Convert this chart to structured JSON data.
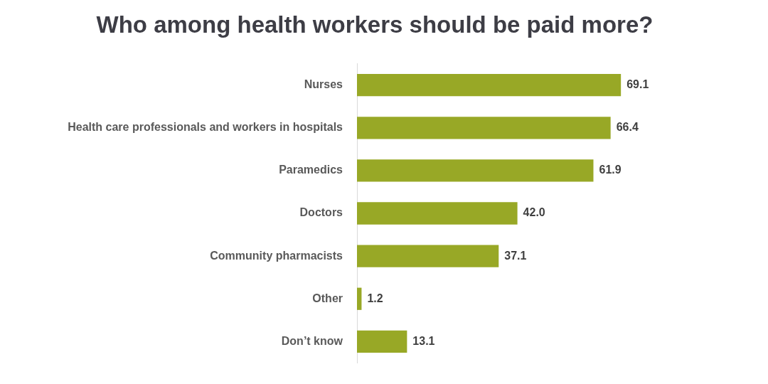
{
  "chart_data": {
    "type": "bar",
    "orientation": "horizontal",
    "title": "Who among health workers should be paid more?",
    "categories": [
      "Nurses",
      "Health care professionals and workers in hospitals",
      "Paramedics",
      "Doctors",
      "Community pharmacists",
      "Other",
      "Don’t know"
    ],
    "values": [
      69.1,
      66.4,
      61.9,
      42.0,
      37.1,
      1.2,
      13.1
    ],
    "value_labels": [
      "69.1",
      "66.4",
      "61.9",
      "42.0",
      "37.1",
      "1.2",
      "13.1"
    ],
    "color": "#98a826",
    "tick_labels": "y"
  }
}
